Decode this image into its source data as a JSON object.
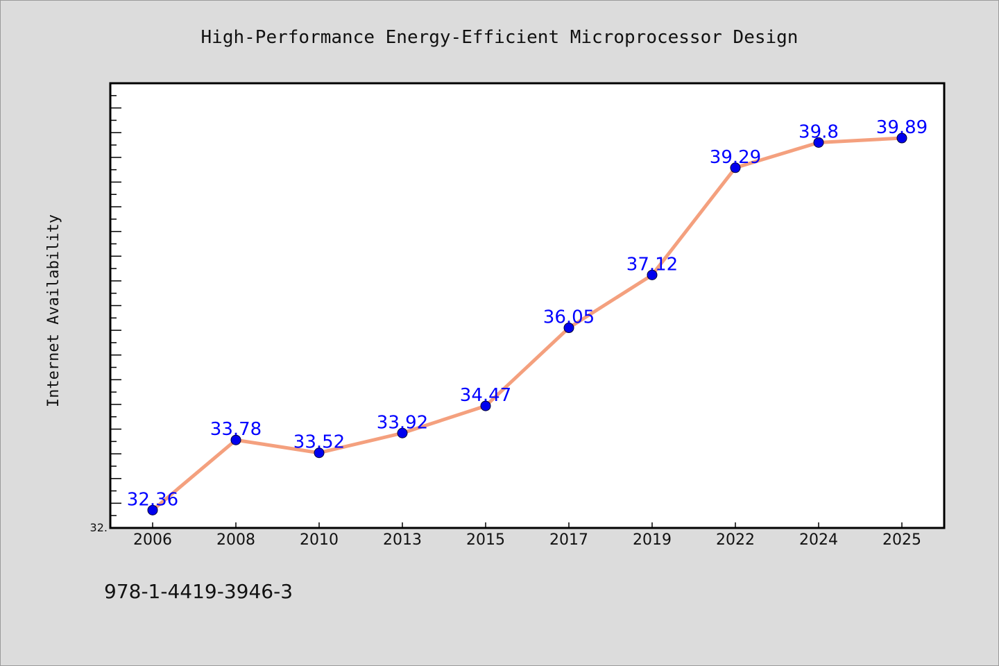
{
  "chart_data": {
    "type": "line",
    "title": "High-Performance Energy-Efficient Microprocessor Design",
    "xlabel": "",
    "ylabel": "Internet Availability",
    "categories": [
      "2006",
      "2008",
      "2010",
      "2013",
      "2015",
      "2017",
      "2019",
      "2022",
      "2024",
      "2025"
    ],
    "series": [
      {
        "values": [
          32.36,
          33.78,
          33.52,
          33.92,
          34.47,
          36.05,
          37.12,
          39.29,
          39.8,
          39.89
        ],
        "labels": [
          "32.36",
          "33.78",
          "33.52",
          "33.92",
          "34.47",
          "36.05",
          "37.12",
          "39.29",
          "39.8",
          "39.89"
        ],
        "line_color": "#f4a07e",
        "marker_color": "#0000ee",
        "label_color": "#0000ff"
      }
    ],
    "ytick_labels": [
      "32."
    ],
    "ylim": [
      32.0,
      41.0
    ],
    "grid": false,
    "legend": "none"
  },
  "footnote": "978-1-4419-3946-3",
  "colors": {
    "background": "#dcdcdc",
    "plot_background": "#ffffff",
    "axes": "#000000"
  }
}
